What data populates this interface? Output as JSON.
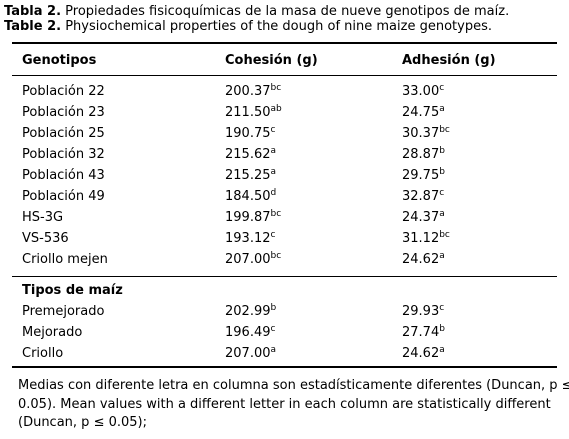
{
  "caption": {
    "es": {
      "label": "Tabla 2.",
      "text": "Propiedades fisicoquímicas de la masa de nueve genotipos de maíz."
    },
    "en": {
      "label": "Table 2.",
      "text": "Physiochemical properties of the dough of nine maize genotypes."
    }
  },
  "table": {
    "header": [
      "Genotipos",
      "Cohesión (g)",
      "Adhesión (g)"
    ],
    "sections": [
      {
        "title": null,
        "rows": [
          [
            "Población 22",
            {
              "value": "200.37",
              "sup": "bc"
            },
            {
              "value": "33.00",
              "sup": "c"
            }
          ],
          [
            "Población 23",
            {
              "value": "211.50",
              "sup": "ab"
            },
            {
              "value": "24.75",
              "sup": "a"
            }
          ],
          [
            "Población 25",
            {
              "value": "190.75",
              "sup": "c"
            },
            {
              "value": "30.37",
              "sup": "bc"
            }
          ],
          [
            "Población 32",
            {
              "value": "215.62",
              "sup": "a"
            },
            {
              "value": "28.87",
              "sup": "b"
            }
          ],
          [
            "Población 43",
            {
              "value": "215.25",
              "sup": "a"
            },
            {
              "value": "29.75",
              "sup": "b"
            }
          ],
          [
            "Población 49",
            {
              "value": "184.50",
              "sup": "d"
            },
            {
              "value": "32.87",
              "sup": "c"
            }
          ],
          [
            "HS-3G",
            {
              "value": "199.87",
              "sup": "bc"
            },
            {
              "value": "24.37",
              "sup": "a"
            }
          ],
          [
            "VS-536",
            {
              "value": "193.12",
              "sup": "c"
            },
            {
              "value": "31.12",
              "sup": "bc"
            }
          ],
          [
            "Criollo mejen",
            {
              "value": "207.00",
              "sup": "bc"
            },
            {
              "value": "24.62",
              "sup": "a"
            }
          ]
        ]
      },
      {
        "title": "Tipos de maíz",
        "rows": [
          [
            "Premejorado",
            {
              "value": "202.99",
              "sup": "b"
            },
            {
              "value": "29.93",
              "sup": "c"
            }
          ],
          [
            "Mejorado",
            {
              "value": "196.49",
              "sup": "c"
            },
            {
              "value": "27.74",
              "sup": "b"
            }
          ],
          [
            "Criollo",
            {
              "value": "207.00",
              "sup": "a"
            },
            {
              "value": "24.62",
              "sup": "a"
            }
          ]
        ]
      }
    ]
  },
  "footnote": [
    "Medias con diferente letra en columna son estadísticamente diferentes (Duncan, p ≤",
    "0.05). Mean values with a different letter in each column are statistically different",
    "(Duncan, p ≤ 0.05);"
  ]
}
